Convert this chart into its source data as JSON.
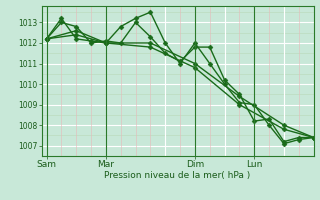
{
  "title": "",
  "xlabel": "Pression niveau de la mer( hPa )",
  "bg_color": "#c8e8d8",
  "plot_bg_color": "#c8e8d8",
  "grid_major_color": "#ffffff",
  "grid_minor_x_color": "#e8b8b8",
  "grid_minor_y_color": "#b8d8b8",
  "line_color": "#1a6b1a",
  "tick_label_color": "#1a5c1a",
  "vline_color": "#2a7a2a",
  "ylim": [
    1006.5,
    1013.8
  ],
  "yticks": [
    1007,
    1008,
    1009,
    1010,
    1011,
    1012,
    1013
  ],
  "xtick_labels": [
    "Sam",
    "Mar",
    "Dim",
    "Lun"
  ],
  "xtick_positions": [
    0,
    24,
    60,
    84
  ],
  "xlim": [
    -2,
    108
  ],
  "vline_positions": [
    0,
    24,
    60,
    84
  ],
  "series": [
    {
      "x": [
        0,
        6,
        12,
        18,
        24,
        30,
        36,
        42,
        48,
        54,
        60,
        66,
        72,
        78,
        84,
        90,
        96,
        102,
        108
      ],
      "y": [
        1012.2,
        1013.0,
        1012.8,
        1012.0,
        1012.1,
        1012.0,
        1013.0,
        1012.3,
        1011.5,
        1011.1,
        1011.8,
        1011.8,
        1010.2,
        1009.5,
        1008.2,
        1008.3,
        1007.2,
        1007.4,
        1007.4
      ],
      "marker": "D",
      "markersize": 2.5,
      "linewidth": 1.0
    },
    {
      "x": [
        0,
        6,
        12,
        18,
        24,
        30,
        36,
        42,
        48,
        54,
        60,
        66,
        72,
        78,
        84,
        90,
        96,
        102,
        108
      ],
      "y": [
        1012.2,
        1013.2,
        1012.2,
        1012.1,
        1012.0,
        1012.8,
        1013.2,
        1013.5,
        1012.0,
        1011.0,
        1012.0,
        1011.0,
        1010.0,
        1009.1,
        1009.0,
        1008.0,
        1007.1,
        1007.3,
        1007.4
      ],
      "marker": "D",
      "markersize": 2.5,
      "linewidth": 1.0
    },
    {
      "x": [
        0,
        12,
        24,
        42,
        60,
        78,
        96,
        108
      ],
      "y": [
        1012.2,
        1012.6,
        1012.0,
        1012.0,
        1011.0,
        1009.4,
        1008.0,
        1007.4
      ],
      "marker": "D",
      "markersize": 2.5,
      "linewidth": 1.0
    },
    {
      "x": [
        0,
        12,
        24,
        42,
        60,
        78,
        96,
        108
      ],
      "y": [
        1012.2,
        1012.4,
        1012.0,
        1011.8,
        1010.8,
        1009.0,
        1007.8,
        1007.4
      ],
      "marker": "D",
      "markersize": 2.5,
      "linewidth": 1.0
    }
  ]
}
